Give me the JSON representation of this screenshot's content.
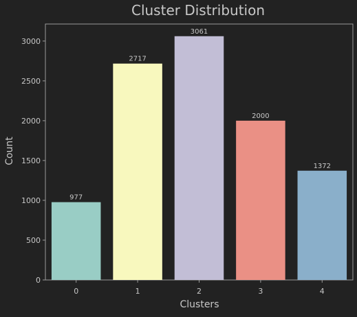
{
  "chart_data": {
    "type": "bar",
    "title": "Cluster Distribution",
    "xlabel": "Clusters",
    "ylabel": "Count",
    "categories": [
      "0",
      "1",
      "2",
      "3",
      "4"
    ],
    "values": [
      977,
      2717,
      3061,
      2000,
      1372
    ],
    "data_labels": [
      "977",
      "2717",
      "3061",
      "2000",
      "1372"
    ],
    "ylim": [
      0,
      3214
    ],
    "yticks": [
      0,
      500,
      1000,
      1500,
      2000,
      2500,
      3000
    ],
    "ytick_labels": [
      "0",
      "500",
      "1000",
      "1500",
      "2000",
      "2500",
      "3000"
    ],
    "grid": false,
    "legend": "none",
    "colors": [
      "#99cdc5",
      "#f8f8be",
      "#c2bed6",
      "#ea9085",
      "#8aafca"
    ],
    "background": "#222222",
    "axis_color": "#9a9a9a",
    "text_color": "#c8c8c8"
  }
}
